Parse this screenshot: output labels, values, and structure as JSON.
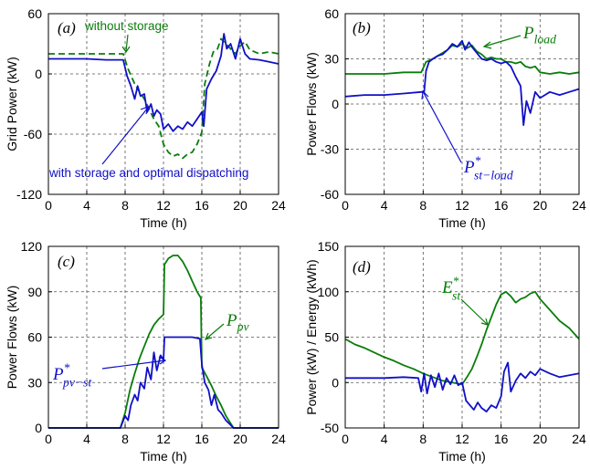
{
  "chart_data": [
    {
      "id": "a",
      "type": "line",
      "panel_label": "(a)",
      "xlabel": "Time (h)",
      "ylabel": "Grid Power (kW)",
      "xlim": [
        0,
        24
      ],
      "ylim": [
        -120,
        60
      ],
      "xticks": [
        "0",
        "4",
        "8",
        "12",
        "16",
        "20",
        "24"
      ],
      "yticks": [
        "60",
        "0",
        "-60",
        "-120"
      ],
      "grid": true,
      "series": [
        {
          "name": "",
          "color": "#0a7d0a",
          "dash": true,
          "x": [
            0,
            2,
            4,
            6,
            7.8,
            8.3,
            9,
            9.5,
            10,
            10.5,
            11,
            11.5,
            12,
            12.5,
            13,
            13.5,
            14,
            14.5,
            15,
            15.5,
            16,
            16.3,
            16.8,
            17.2,
            17.6,
            18,
            18.5,
            19,
            19.5,
            20,
            20.5,
            21,
            21.5,
            22,
            23,
            24
          ],
          "y": [
            20,
            20,
            20,
            20,
            20,
            5,
            -10,
            -18,
            -25,
            -35,
            -45,
            -52,
            -70,
            -78,
            -82,
            -80,
            -84,
            -80,
            -78,
            -70,
            -58,
            -10,
            10,
            22,
            24,
            35,
            30,
            25,
            20,
            28,
            32,
            24,
            22,
            20,
            22,
            20
          ]
        },
        {
          "name": "",
          "color": "#1010c8",
          "dash": false,
          "x": [
            0,
            2,
            4,
            6,
            7.8,
            8.2,
            8.6,
            9,
            9.3,
            9.6,
            10,
            10.3,
            10.7,
            11,
            11.3,
            11.7,
            12,
            12.5,
            13,
            13.5,
            14,
            14.5,
            15,
            15.5,
            16,
            16.2,
            16.5,
            17,
            17.5,
            18,
            18.3,
            18.6,
            19,
            19.5,
            20,
            20.5,
            21,
            22,
            23,
            24
          ],
          "y": [
            15,
            15,
            15,
            14,
            14,
            -2,
            -12,
            -25,
            -12,
            -22,
            -20,
            -38,
            -30,
            -42,
            -36,
            -40,
            -55,
            -50,
            -57,
            -52,
            -55,
            -48,
            -52,
            -45,
            -38,
            -52,
            -15,
            -5,
            3,
            18,
            40,
            25,
            30,
            15,
            35,
            20,
            15,
            14,
            12,
            10
          ]
        }
      ],
      "annotations": [
        {
          "text": "without storage",
          "color": "#0a7d0a"
        },
        {
          "text": "with storage and optimal dispatching",
          "color": "#1010c8"
        }
      ]
    },
    {
      "id": "b",
      "type": "line",
      "panel_label": "(b)",
      "xlabel": "Time (h)",
      "ylabel": "Power Flows (kW)",
      "xlim": [
        0,
        24
      ],
      "ylim": [
        -60,
        60
      ],
      "xticks": [
        "0",
        "4",
        "8",
        "12",
        "16",
        "20",
        "24"
      ],
      "yticks": [
        "60",
        "30",
        "0",
        "-30",
        "-60"
      ],
      "grid": true,
      "series": [
        {
          "name": "P_load",
          "color": "#0a7d0a",
          "dash": false,
          "x": [
            0,
            2,
            4,
            6,
            7.8,
            8.3,
            9,
            9.5,
            10,
            10.5,
            11,
            11.5,
            12,
            12.5,
            13,
            13.5,
            14,
            14.5,
            15,
            15.5,
            16,
            16.5,
            17,
            17.5,
            18,
            18.5,
            19,
            19.5,
            20,
            21,
            22,
            23,
            24
          ],
          "y": [
            20,
            20,
            20,
            21,
            21,
            28,
            30,
            32,
            34,
            36,
            39,
            38,
            40,
            37,
            39,
            35,
            33,
            30,
            31,
            30,
            30,
            28,
            28,
            27,
            28,
            25,
            24,
            25,
            21,
            20,
            21,
            20,
            21
          ]
        },
        {
          "name": "P*st-load",
          "color": "#1010c8",
          "dash": false,
          "x": [
            0,
            2,
            4,
            6,
            7.8,
            8.1,
            8.3,
            8.6,
            9,
            9.5,
            10,
            10.5,
            11,
            11.5,
            12,
            12.3,
            12.7,
            13,
            13.5,
            14,
            14.5,
            15,
            15.5,
            16,
            16.5,
            17,
            17.5,
            18,
            18.3,
            18.6,
            19,
            19.5,
            20,
            20.5,
            21,
            22,
            23,
            24
          ],
          "y": [
            5,
            6,
            6,
            7,
            8,
            8,
            22,
            28,
            30,
            32,
            33,
            36,
            40,
            38,
            42,
            36,
            41,
            38,
            34,
            30,
            29,
            30,
            28,
            27,
            28,
            25,
            18,
            12,
            -14,
            2,
            -6,
            8,
            4,
            6,
            8,
            6,
            8,
            10
          ]
        }
      ],
      "annotations": [
        {
          "text": "P",
          "sub": "load",
          "color": "#0a7d0a"
        },
        {
          "text": "P",
          "sup": "*",
          "sub": "st−load",
          "color": "#1010c8"
        }
      ]
    },
    {
      "id": "c",
      "type": "line",
      "panel_label": "(c)",
      "xlabel": "Time (h)",
      "ylabel": "Power Flows (kW)",
      "xlim": [
        0,
        24
      ],
      "ylim": [
        0,
        120
      ],
      "xticks": [
        "0",
        "4",
        "8",
        "12",
        "16",
        "20",
        "24"
      ],
      "yticks": [
        "120",
        "90",
        "60",
        "30",
        "0"
      ],
      "grid": true,
      "series": [
        {
          "name": "P_pv",
          "color": "#0a7d0a",
          "dash": false,
          "x": [
            0,
            2,
            4,
            6,
            7.5,
            8,
            8.5,
            9,
            9.5,
            10,
            10.5,
            11,
            11.5,
            12,
            12.1,
            12.5,
            13,
            13.5,
            14,
            14.5,
            15,
            15.5,
            15.9,
            16,
            16.5,
            17,
            17.5,
            18,
            18.5,
            19,
            19.3,
            20,
            22,
            24
          ],
          "y": [
            0,
            0,
            0,
            0,
            0,
            10,
            25,
            36,
            46,
            54,
            62,
            68,
            72,
            75,
            108,
            112,
            114,
            114,
            110,
            104,
            97,
            90,
            86,
            40,
            34,
            28,
            21,
            15,
            8,
            3,
            0,
            0,
            0,
            0
          ]
        },
        {
          "name": "P*pv-st",
          "color": "#1010c8",
          "dash": false,
          "x": [
            0,
            2,
            4,
            6,
            7.5,
            8,
            8.3,
            8.6,
            9,
            9.3,
            9.6,
            10,
            10.3,
            10.7,
            11,
            11.3,
            11.7,
            12,
            12.1,
            13,
            14,
            15,
            15.8,
            16,
            16.3,
            16.7,
            17,
            17.3,
            17.7,
            18,
            18.5,
            19,
            19.3,
            20,
            22,
            24
          ],
          "y": [
            0,
            0,
            0,
            0,
            0,
            8,
            5,
            15,
            22,
            18,
            30,
            26,
            40,
            32,
            50,
            38,
            48,
            45,
            60,
            60,
            60,
            60,
            59,
            42,
            30,
            25,
            15,
            22,
            12,
            10,
            5,
            2,
            0,
            0,
            0,
            0
          ]
        }
      ],
      "annotations": [
        {
          "text": "P",
          "sub": "pv",
          "color": "#0a7d0a"
        },
        {
          "text": "P",
          "sup": "*",
          "sub": "pv−st",
          "color": "#1010c8"
        }
      ]
    },
    {
      "id": "d",
      "type": "line",
      "panel_label": "(d)",
      "xlabel": "Time (h)",
      "ylabel": "Power (kW) / Energy (kWh)",
      "xlim": [
        0,
        24
      ],
      "ylim": [
        -50,
        150
      ],
      "xticks": [
        "0",
        "4",
        "8",
        "12",
        "16",
        "20",
        "24"
      ],
      "yticks": [
        "150",
        "100",
        "50",
        "0",
        "-50"
      ],
      "grid": true,
      "series": [
        {
          "name": "E*st",
          "color": "#0a7d0a",
          "dash": false,
          "x": [
            0,
            1,
            2,
            3,
            4,
            5,
            6,
            7,
            8,
            9,
            10,
            11,
            12,
            12.5,
            13,
            13.5,
            14,
            14.5,
            15,
            15.5,
            16,
            16.5,
            17,
            17.5,
            18,
            18.5,
            19,
            19.5,
            20,
            21,
            22,
            23,
            24
          ],
          "y": [
            48,
            42,
            38,
            33,
            28,
            24,
            19,
            15,
            10,
            6,
            2,
            0,
            -2,
            6,
            15,
            28,
            42,
            58,
            72,
            86,
            97,
            100,
            95,
            88,
            92,
            94,
            98,
            100,
            92,
            80,
            68,
            60,
            48
          ]
        },
        {
          "name": "",
          "color": "#1010c8",
          "dash": false,
          "x": [
            0,
            2,
            4,
            6,
            7.5,
            7.8,
            8.1,
            8.4,
            8.8,
            9.2,
            9.6,
            10,
            10.4,
            10.8,
            11.2,
            11.6,
            12,
            12.4,
            12.8,
            13.2,
            13.6,
            14,
            14.5,
            15,
            15.5,
            16,
            16.3,
            16.7,
            17,
            17.5,
            18,
            18.5,
            19,
            19.5,
            20,
            21,
            22,
            23,
            24
          ],
          "y": [
            5,
            5,
            5,
            6,
            5,
            -10,
            10,
            -12,
            8,
            -5,
            10,
            -8,
            5,
            -2,
            8,
            -3,
            0,
            -20,
            -25,
            -30,
            -22,
            -28,
            -32,
            -25,
            -28,
            -15,
            12,
            22,
            -10,
            2,
            10,
            5,
            12,
            8,
            15,
            10,
            6,
            8,
            10
          ]
        }
      ],
      "annotations": [
        {
          "text": "E",
          "sup": "*",
          "sub": "st",
          "color": "#0a7d0a"
        }
      ]
    }
  ]
}
